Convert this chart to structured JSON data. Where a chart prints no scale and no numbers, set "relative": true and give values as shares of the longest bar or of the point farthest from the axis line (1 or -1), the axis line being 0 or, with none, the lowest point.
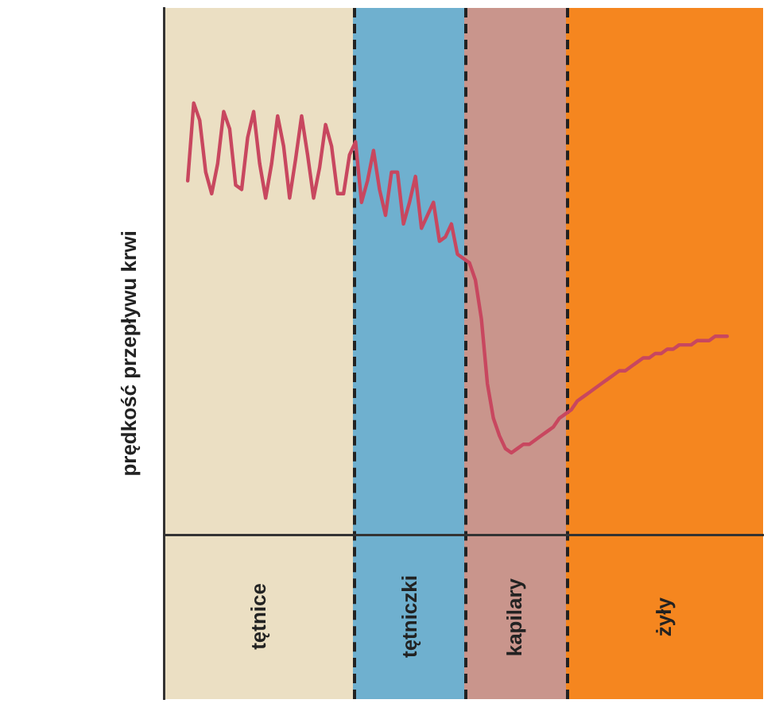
{
  "chart_data": {
    "type": "line",
    "ylabel": "prędkość przepływu krwi",
    "relative": true,
    "legend": false,
    "marker": "none",
    "line_style": "solid",
    "categories": [
      null,
      null,
      null,
      null,
      null,
      null,
      null,
      null,
      null,
      null,
      null,
      null,
      null,
      null,
      null,
      null,
      null,
      null,
      null,
      null,
      null,
      null,
      null,
      null,
      null,
      null,
      null,
      null,
      null,
      null,
      null,
      null,
      null,
      null,
      null,
      null,
      null,
      null,
      null,
      null,
      null,
      null,
      null,
      null,
      null,
      null,
      null,
      null,
      null,
      null,
      null,
      null,
      null,
      null,
      null,
      null,
      null,
      null,
      null,
      null,
      null,
      null,
      null,
      null,
      null,
      null,
      null,
      null,
      null,
      null,
      null,
      null,
      null,
      null,
      null,
      null,
      null,
      null,
      null,
      null,
      null,
      null,
      null,
      null,
      null,
      null,
      null,
      null,
      null,
      null,
      null,
      null,
      null,
      null,
      null,
      null,
      null,
      null,
      null,
      null,
      null
    ],
    "series": [
      {
        "color": "#c8475f",
        "values": [
          null,
          null,
          null,
          null,
          0.82,
          1,
          0.96,
          0.84,
          0.79,
          0.86,
          0.98,
          0.94,
          0.81,
          0.8,
          0.92,
          0.98,
          0.86,
          0.78,
          0.86,
          0.97,
          0.9,
          0.78,
          0.87,
          0.97,
          0.88,
          0.78,
          0.85,
          0.95,
          0.9,
          0.79,
          0.79,
          0.88,
          0.91,
          0.77,
          0.82,
          0.89,
          0.8,
          0.74,
          0.84,
          0.84,
          0.72,
          0.77,
          0.83,
          0.71,
          0.74,
          0.77,
          0.68,
          0.69,
          0.72,
          0.65,
          0.64,
          0.63,
          0.59,
          0.5,
          0.35,
          0.27,
          0.23,
          0.2,
          0.19,
          0.2,
          0.21,
          0.21,
          0.22,
          0.23,
          0.24,
          0.25,
          0.27,
          0.28,
          0.29,
          0.31,
          0.32,
          0.33,
          0.34,
          0.35,
          0.36,
          0.37,
          0.38,
          0.38,
          0.39,
          0.4,
          0.41,
          0.41,
          0.42,
          0.42,
          0.43,
          0.43,
          0.44,
          0.44,
          0.44,
          0.45,
          0.45,
          0.45,
          0.46,
          0.46,
          0.46,
          null,
          null,
          null,
          null,
          null,
          null
        ]
      }
    ],
    "annotations": [
      "tętnice",
      "tętniczki",
      "kapilary",
      "żyły"
    ]
  }
}
